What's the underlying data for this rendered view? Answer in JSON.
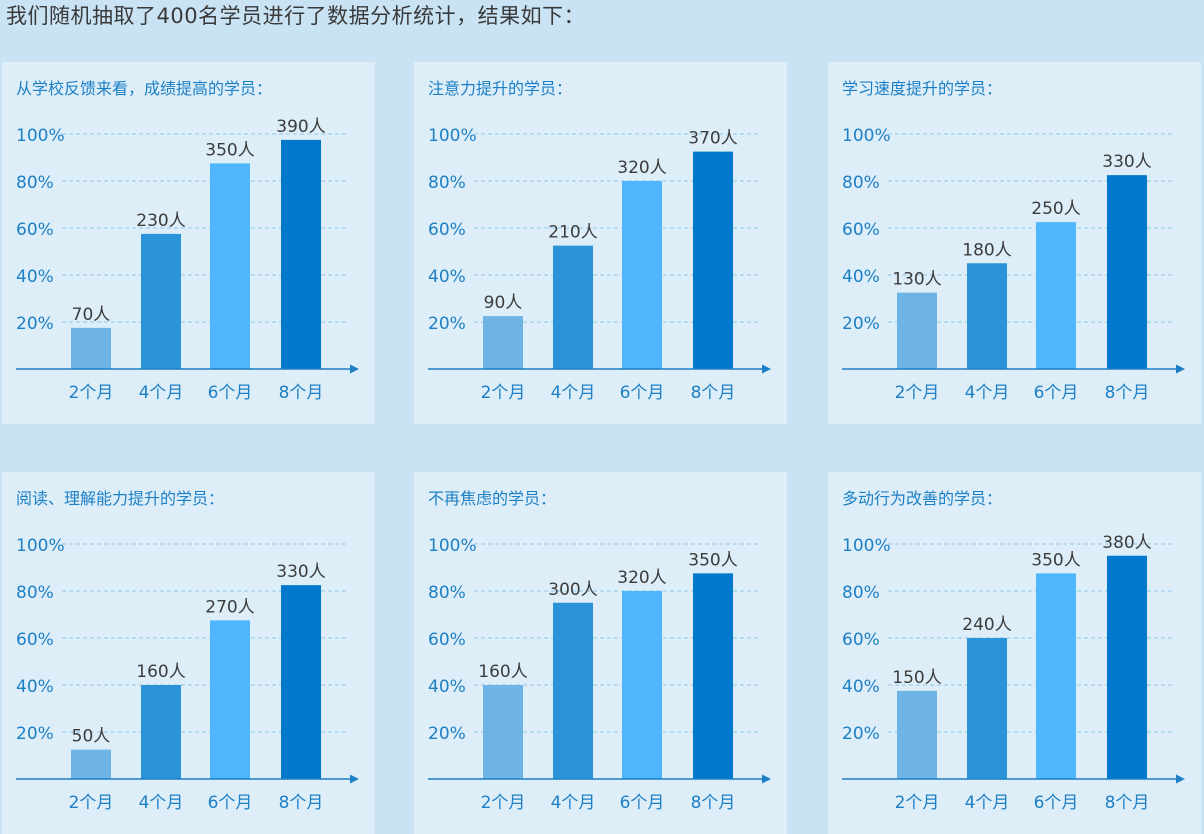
{
  "page": {
    "title": "我们随机抽取了400名学员进行了数据分析统计，结果如下："
  },
  "colors": {
    "bar_2": "#6db3e3",
    "bar_4": "#2b93d8",
    "bar_6": "#4db6fc",
    "bar_8": "#0079cc",
    "axis": "#1d7fc4",
    "grid": "#8fc6ea",
    "tick_text": "#1d7fc4",
    "label_text": "#3c3c3c"
  },
  "chart_data": [
    {
      "type": "bar",
      "title": "从学校反馈来看，成绩提高的学员：",
      "categories": [
        "2个月",
        "4个月",
        "6个月",
        "8个月"
      ],
      "values": [
        70,
        230,
        350,
        390
      ],
      "value_labels": [
        "70人",
        "230人",
        "350人",
        "390人"
      ],
      "yticks": [
        "20%",
        "40%",
        "60%",
        "80%",
        "100%"
      ],
      "total": 400,
      "grid": true
    },
    {
      "type": "bar",
      "title": "注意力提升的学员：",
      "categories": [
        "2个月",
        "4个月",
        "6个月",
        "8个月"
      ],
      "values": [
        90,
        210,
        320,
        370
      ],
      "value_labels": [
        "90人",
        "210人",
        "320人",
        "370人"
      ],
      "yticks": [
        "20%",
        "40%",
        "60%",
        "80%",
        "100%"
      ],
      "total": 400,
      "grid": true
    },
    {
      "type": "bar",
      "title": "学习速度提升的学员：",
      "categories": [
        "2个月",
        "4个月",
        "6个月",
        "8个月"
      ],
      "values": [
        130,
        180,
        250,
        330
      ],
      "value_labels": [
        "130人",
        "180人",
        "250人",
        "330人"
      ],
      "yticks": [
        "20%",
        "40%",
        "60%",
        "80%",
        "100%"
      ],
      "total": 400,
      "grid": true
    },
    {
      "type": "bar",
      "title": "阅读、理解能力提升的学员：",
      "categories": [
        "2个月",
        "4个月",
        "6个月",
        "8个月"
      ],
      "values": [
        50,
        160,
        270,
        330
      ],
      "value_labels": [
        "50人",
        "160人",
        "270人",
        "330人"
      ],
      "yticks": [
        "20%",
        "40%",
        "60%",
        "80%",
        "100%"
      ],
      "total": 400,
      "grid": true
    },
    {
      "type": "bar",
      "title": "不再焦虑的学员：",
      "categories": [
        "2个月",
        "4个月",
        "6个月",
        "8个月"
      ],
      "values": [
        160,
        300,
        320,
        350
      ],
      "value_labels": [
        "160人",
        "300人",
        "320人",
        "350人"
      ],
      "yticks": [
        "20%",
        "40%",
        "60%",
        "80%",
        "100%"
      ],
      "total": 400,
      "grid": true
    },
    {
      "type": "bar",
      "title": "多动行为改善的学员：",
      "categories": [
        "2个月",
        "4个月",
        "6个月",
        "8个月"
      ],
      "values": [
        150,
        240,
        350,
        380
      ],
      "value_labels": [
        "150人",
        "240人",
        "350人",
        "380人"
      ],
      "yticks": [
        "20%",
        "40%",
        "60%",
        "80%",
        "100%"
      ],
      "total": 400,
      "grid": true
    }
  ]
}
